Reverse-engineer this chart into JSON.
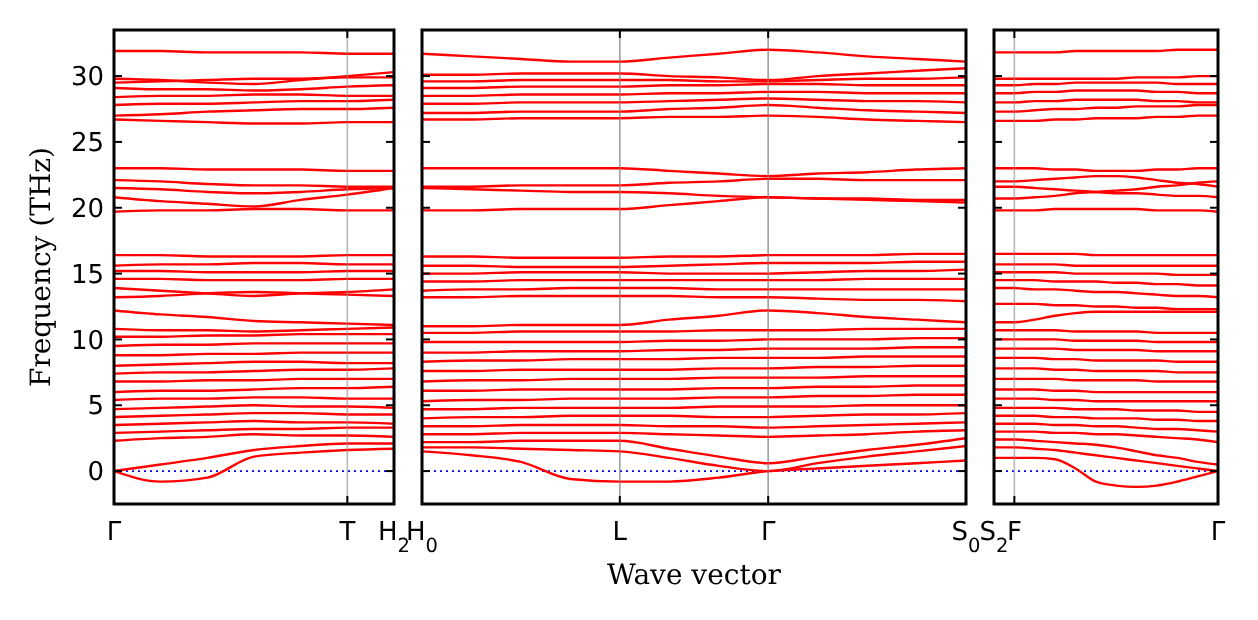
{
  "chart_data": [
    {
      "type": "line",
      "ylabel": "Frequency (THz)",
      "categories": [
        "Γ",
        null,
        null,
        null,
        null,
        "T",
        "H$_{2}$"
      ],
      "ylim": [
        -2.5,
        33.5
      ],
      "yticks": [
        0,
        5,
        10,
        15,
        20,
        25,
        30
      ],
      "ref_lines": [
        {
          "axis": "y",
          "value": 0,
          "color": "#0000ff",
          "line_style": "dotted"
        },
        {
          "axis": "x",
          "value": "T",
          "color": "#888888"
        }
      ],
      "series": [
        {
          "color": "#ff0000",
          "values": [
            0,
            -0.8,
            -0.5,
            1.1,
            1.4,
            1.6,
            1.7
          ]
        },
        {
          "color": "#ff0000",
          "values": [
            0,
            0.5,
            1,
            1.6,
            1.9,
            2.1,
            2.1
          ]
        },
        {
          "color": "#ff0000",
          "values": [
            2.3,
            2.5,
            2.6,
            2.8,
            2.7,
            2.7,
            2.6
          ]
        },
        {
          "color": "#ff0000",
          "values": [
            2.9,
            3,
            3.1,
            3.2,
            3.2,
            3.3,
            3.3
          ]
        },
        {
          "color": "#ff0000",
          "values": [
            3.5,
            3.6,
            3.7,
            3.8,
            3.7,
            3.7,
            3.6
          ]
        },
        {
          "color": "#ff0000",
          "values": [
            4.1,
            4.2,
            4.3,
            4.4,
            4.4,
            4.3,
            4.3
          ]
        },
        {
          "color": "#ff0000",
          "values": [
            4.7,
            4.8,
            4.9,
            5,
            4.9,
            4.9,
            4.8
          ]
        },
        {
          "color": "#ff0000",
          "values": [
            5.4,
            5.5,
            5.5,
            5.6,
            5.6,
            5.5,
            5.5
          ]
        },
        {
          "color": "#ff0000",
          "values": [
            6,
            6.1,
            6.1,
            6.2,
            6.3,
            6.3,
            6.4
          ]
        },
        {
          "color": "#ff0000",
          "values": [
            6.8,
            6.8,
            6.9,
            6.9,
            7,
            7,
            7
          ]
        },
        {
          "color": "#ff0000",
          "values": [
            7.4,
            7.5,
            7.5,
            7.6,
            7.7,
            7.7,
            7.8
          ]
        },
        {
          "color": "#ff0000",
          "values": [
            8,
            8.1,
            8.2,
            8.3,
            8.3,
            8.2,
            8.2
          ]
        },
        {
          "color": "#ff0000",
          "values": [
            8.8,
            8.8,
            8.9,
            8.9,
            9,
            9,
            9
          ]
        },
        {
          "color": "#ff0000",
          "values": [
            9.5,
            9.6,
            9.6,
            9.7,
            9.7,
            9.7,
            9.7
          ]
        },
        {
          "color": "#ff0000",
          "values": [
            10.2,
            10.2,
            10.3,
            10.3,
            10.4,
            10.4,
            10.4
          ]
        },
        {
          "color": "#ff0000",
          "values": [
            10.8,
            10.7,
            10.7,
            10.6,
            10.7,
            10.8,
            10.9
          ]
        },
        {
          "color": "#ff0000",
          "values": [
            12.2,
            11.9,
            11.7,
            11.4,
            11.3,
            11.2,
            11.1
          ]
        },
        {
          "color": "#ff0000",
          "values": [
            13.2,
            13.3,
            13.5,
            13.6,
            13.5,
            13.4,
            13.3
          ]
        },
        {
          "color": "#ff0000",
          "values": [
            13.9,
            13.7,
            13.5,
            13.3,
            13.5,
            13.6,
            13.8
          ]
        },
        {
          "color": "#ff0000",
          "values": [
            14.6,
            14.6,
            14.5,
            14.5,
            14.5,
            14.6,
            14.6
          ]
        },
        {
          "color": "#ff0000",
          "values": [
            15.2,
            15.2,
            15.1,
            15.1,
            15.1,
            15.2,
            15.2
          ]
        },
        {
          "color": "#ff0000",
          "values": [
            15.6,
            15.7,
            15.7,
            15.8,
            15.8,
            15.7,
            15.7
          ]
        },
        {
          "color": "#ff0000",
          "values": [
            16.4,
            16.4,
            16.3,
            16.3,
            16.3,
            16.4,
            16.4
          ]
        },
        {
          "color": "#ff0000",
          "values": [
            19.7,
            19.8,
            19.8,
            19.9,
            19.9,
            19.8,
            19.8
          ]
        },
        {
          "color": "#ff0000",
          "values": [
            20.8,
            20.5,
            20.3,
            20.1,
            20.6,
            21,
            21.5
          ]
        },
        {
          "color": "#ff0000",
          "values": [
            21.5,
            21.4,
            21.2,
            21.1,
            21.2,
            21.4,
            21.5
          ]
        },
        {
          "color": "#ff0000",
          "values": [
            22.1,
            22,
            21.8,
            21.7,
            21.7,
            21.6,
            21.6
          ]
        },
        {
          "color": "#ff0000",
          "values": [
            23,
            23,
            22.9,
            22.9,
            22.9,
            22.8,
            22.8
          ]
        },
        {
          "color": "#ff0000",
          "values": [
            26.7,
            26.6,
            26.5,
            26.4,
            26.4,
            26.5,
            26.5
          ]
        },
        {
          "color": "#ff0000",
          "values": [
            27,
            27.1,
            27.3,
            27.4,
            27.5,
            27.5,
            27.6
          ]
        },
        {
          "color": "#ff0000",
          "values": [
            27.8,
            27.9,
            27.9,
            28,
            28.1,
            28.1,
            28.2
          ]
        },
        {
          "color": "#ff0000",
          "values": [
            28.4,
            28.5,
            28.5,
            28.6,
            28.6,
            28.5,
            28.5
          ]
        },
        {
          "color": "#ff0000",
          "values": [
            29.1,
            29,
            29,
            28.9,
            29,
            29.2,
            29.3
          ]
        },
        {
          "color": "#ff0000",
          "values": [
            29.5,
            29.6,
            29.7,
            29.8,
            29.8,
            29.9,
            29.9
          ]
        },
        {
          "color": "#ff0000",
          "values": [
            29.8,
            29.7,
            29.5,
            29.4,
            29.7,
            30,
            30.3
          ]
        },
        {
          "color": "#ff0000",
          "values": [
            31.9,
            31.9,
            31.8,
            31.8,
            31.8,
            31.7,
            31.7
          ]
        }
      ]
    },
    {
      "type": "line",
      "xlabel": "Wave vector",
      "tick_labels": "x",
      "categories": [
        "H$_{0}$",
        null,
        null,
        null,
        "L",
        null,
        null,
        "Γ",
        null,
        null,
        null,
        "S$_{0}$"
      ],
      "ylim": [
        -2.5,
        33.5
      ],
      "yticks": [
        0,
        5,
        10,
        15,
        20,
        25,
        30
      ],
      "grid": "x",
      "ref_lines": [
        {
          "axis": "y",
          "value": 0,
          "color": "#0000ff",
          "line_style": "dotted"
        }
      ],
      "series": [
        {
          "color": "#ff0000",
          "values": [
            1.5,
            1.2,
            0.7,
            -0.6,
            -0.8,
            -0.8,
            -0.5,
            0,
            0.2,
            0.4,
            0.6,
            0.8
          ]
        },
        {
          "color": "#ff0000",
          "values": [
            1.8,
            1.8,
            1.7,
            1.6,
            1.5,
            1,
            0.4,
            0,
            0.6,
            1.1,
            1.5,
            1.9
          ]
        },
        {
          "color": "#ff0000",
          "values": [
            2.2,
            2.2,
            2.3,
            2.3,
            2.3,
            1.7,
            1.1,
            0.6,
            1.1,
            1.6,
            2,
            2.5
          ]
        },
        {
          "color": "#ff0000",
          "values": [
            2.8,
            2.8,
            2.9,
            2.9,
            2.9,
            2.8,
            2.7,
            2.6,
            2.7,
            2.8,
            3,
            3.1
          ]
        },
        {
          "color": "#ff0000",
          "values": [
            3.4,
            3.4,
            3.5,
            3.5,
            3.5,
            3.4,
            3.4,
            3.3,
            3.4,
            3.5,
            3.6,
            3.7
          ]
        },
        {
          "color": "#ff0000",
          "values": [
            4,
            4.1,
            4.1,
            4.2,
            4.2,
            4.2,
            4.1,
            4.1,
            4.2,
            4.3,
            4.3,
            4.4
          ]
        },
        {
          "color": "#ff0000",
          "values": [
            4.7,
            4.7,
            4.8,
            4.8,
            4.8,
            4.8,
            4.9,
            4.9,
            4.9,
            5,
            5,
            5
          ]
        },
        {
          "color": "#ff0000",
          "values": [
            5.3,
            5.4,
            5.4,
            5.5,
            5.5,
            5.5,
            5.6,
            5.6,
            5.7,
            5.7,
            5.8,
            5.8
          ]
        },
        {
          "color": "#ff0000",
          "values": [
            6.1,
            6.1,
            6.2,
            6.2,
            6.2,
            6.2,
            6.3,
            6.3,
            6.4,
            6.4,
            6.5,
            6.5
          ]
        },
        {
          "color": "#ff0000",
          "values": [
            6.8,
            6.9,
            6.9,
            7,
            7,
            7,
            7.1,
            7.1,
            7.1,
            7.2,
            7.2,
            7.2
          ]
        },
        {
          "color": "#ff0000",
          "values": [
            7.6,
            7.6,
            7.7,
            7.7,
            7.7,
            7.7,
            7.8,
            7.8,
            7.9,
            7.9,
            8,
            8
          ]
        },
        {
          "color": "#ff0000",
          "values": [
            8.3,
            8.4,
            8.4,
            8.5,
            8.5,
            8.5,
            8.6,
            8.6,
            8.6,
            8.7,
            8.7,
            8.7
          ]
        },
        {
          "color": "#ff0000",
          "values": [
            9,
            9,
            9.1,
            9.1,
            9.1,
            9.2,
            9.2,
            9.3,
            9.3,
            9.3,
            9.4,
            9.4
          ]
        },
        {
          "color": "#ff0000",
          "values": [
            9.8,
            9.8,
            9.8,
            9.8,
            9.8,
            9.9,
            9.9,
            10,
            10,
            10,
            10.1,
            10.1
          ]
        },
        {
          "color": "#ff0000",
          "values": [
            10.5,
            10.5,
            10.6,
            10.6,
            10.6,
            10.6,
            10.7,
            10.7,
            10.7,
            10.8,
            10.8,
            10.8
          ]
        },
        {
          "color": "#ff0000",
          "values": [
            11,
            11,
            11.1,
            11.1,
            11.1,
            11.5,
            11.8,
            12.2,
            12,
            11.7,
            11.5,
            11.3
          ]
        },
        {
          "color": "#ff0000",
          "values": [
            13.2,
            13.2,
            13.3,
            13.3,
            13.3,
            13.3,
            13.2,
            13.2,
            13.1,
            13,
            13,
            12.9
          ]
        },
        {
          "color": "#ff0000",
          "values": [
            13.7,
            13.8,
            13.8,
            13.9,
            13.9,
            13.9,
            13.8,
            13.8,
            13.8,
            13.8,
            13.8,
            13.8
          ]
        },
        {
          "color": "#ff0000",
          "values": [
            14.4,
            14.4,
            14.5,
            14.5,
            14.5,
            14.5,
            14.5,
            14.5,
            14.5,
            14.6,
            14.6,
            14.6
          ]
        },
        {
          "color": "#ff0000",
          "values": [
            15,
            15,
            15.1,
            15.1,
            15.1,
            15,
            15,
            15,
            15.1,
            15.2,
            15.2,
            15.3
          ]
        },
        {
          "color": "#ff0000",
          "values": [
            15.6,
            15.6,
            15.5,
            15.5,
            15.5,
            15.6,
            15.7,
            15.8,
            15.8,
            15.8,
            15.9,
            15.9
          ]
        },
        {
          "color": "#ff0000",
          "values": [
            16.3,
            16.3,
            16.2,
            16.2,
            16.2,
            16.3,
            16.3,
            16.4,
            16.4,
            16.4,
            16.5,
            16.5
          ]
        },
        {
          "color": "#ff0000",
          "values": [
            19.8,
            19.8,
            19.9,
            19.9,
            19.9,
            20.2,
            20.5,
            20.8,
            20.7,
            20.7,
            20.6,
            20.6
          ]
        },
        {
          "color": "#ff0000",
          "values": [
            21.5,
            21.4,
            21.3,
            21.2,
            21.2,
            21.1,
            20.9,
            20.8,
            20.7,
            20.6,
            20.5,
            20.4
          ]
        },
        {
          "color": "#ff0000",
          "values": [
            21.6,
            21.6,
            21.7,
            21.7,
            21.7,
            21.9,
            22,
            22.2,
            22.2,
            22.1,
            22.1,
            22.1
          ]
        },
        {
          "color": "#ff0000",
          "values": [
            23,
            23,
            23,
            23,
            23,
            22.8,
            22.6,
            22.4,
            22.6,
            22.7,
            22.9,
            23
          ]
        },
        {
          "color": "#ff0000",
          "values": [
            26.7,
            26.7,
            26.8,
            26.8,
            26.8,
            26.9,
            26.9,
            27,
            26.9,
            26.7,
            26.6,
            26.5
          ]
        },
        {
          "color": "#ff0000",
          "values": [
            27.2,
            27.2,
            27.3,
            27.3,
            27.3,
            27.5,
            27.6,
            27.8,
            27.6,
            27.4,
            27.3,
            27.2
          ]
        },
        {
          "color": "#ff0000",
          "values": [
            27.9,
            27.9,
            28,
            28,
            28,
            28.1,
            28.2,
            28.3,
            28.2,
            28.1,
            28.1,
            28
          ]
        },
        {
          "color": "#ff0000",
          "values": [
            28.5,
            28.5,
            28.6,
            28.6,
            28.6,
            28.7,
            28.7,
            28.8,
            28.8,
            28.7,
            28.7,
            28.7
          ]
        },
        {
          "color": "#ff0000",
          "values": [
            29.1,
            29.1,
            29.2,
            29.2,
            29.2,
            29.3,
            29.3,
            29.4,
            29.4,
            29.3,
            29.3,
            29.3
          ]
        },
        {
          "color": "#ff0000",
          "values": [
            29.6,
            29.6,
            29.7,
            29.7,
            29.7,
            29.7,
            29.6,
            29.6,
            29.7,
            29.8,
            29.8,
            29.9
          ]
        },
        {
          "color": "#ff0000",
          "values": [
            30.1,
            30.1,
            30.2,
            30.2,
            30.2,
            30,
            29.9,
            29.7,
            30,
            30.2,
            30.4,
            30.6
          ]
        },
        {
          "color": "#ff0000",
          "values": [
            31.7,
            31.5,
            31.3,
            31.1,
            31.1,
            31.4,
            31.7,
            32,
            31.8,
            31.5,
            31.3,
            31.1
          ]
        }
      ]
    },
    {
      "type": "line",
      "tick_labels": "x",
      "categories": [
        "S$_{2}$",
        "F",
        null,
        null,
        null,
        null,
        null,
        null,
        null,
        null,
        null,
        "Γ"
      ],
      "ylim": [
        -2.5,
        33.5
      ],
      "yticks": [
        0,
        5,
        10,
        15,
        20,
        25,
        30
      ],
      "ref_lines": [
        {
          "axis": "y",
          "value": 0,
          "color": "#0000ff",
          "line_style": "dotted"
        },
        {
          "axis": "x",
          "value": "F",
          "color": "#888888"
        }
      ],
      "series": [
        {
          "color": "#ff0000",
          "values": [
            1,
            1,
            1,
            0.9,
            0.2,
            -0.8,
            -1.1,
            -1.2,
            -1.1,
            -0.8,
            -0.4,
            0
          ]
        },
        {
          "color": "#ff0000",
          "values": [
            1.8,
            1.8,
            1.7,
            1.6,
            1.4,
            1.2,
            1,
            0.8,
            0.6,
            0.4,
            0.2,
            0
          ]
        },
        {
          "color": "#ff0000",
          "values": [
            2.4,
            2.4,
            2.3,
            2.2,
            2.1,
            2,
            1.8,
            1.5,
            1.2,
            1,
            0.7,
            0.5
          ]
        },
        {
          "color": "#ff0000",
          "values": [
            3,
            3,
            3,
            2.9,
            2.9,
            2.8,
            2.8,
            2.7,
            2.6,
            2.5,
            2.4,
            2.2
          ]
        },
        {
          "color": "#ff0000",
          "values": [
            3.6,
            3.6,
            3.6,
            3.5,
            3.5,
            3.4,
            3.4,
            3.3,
            3.2,
            3.2,
            3.1,
            3
          ]
        },
        {
          "color": "#ff0000",
          "values": [
            4.2,
            4.2,
            4.2,
            4.1,
            4.1,
            4,
            4,
            4,
            3.9,
            3.9,
            3.8,
            3.8
          ]
        },
        {
          "color": "#ff0000",
          "values": [
            4.8,
            4.8,
            4.8,
            4.8,
            4.7,
            4.7,
            4.7,
            4.6,
            4.6,
            4.6,
            4.5,
            4.5
          ]
        },
        {
          "color": "#ff0000",
          "values": [
            5.5,
            5.5,
            5.5,
            5.4,
            5.4,
            5.3,
            5.3,
            5.3,
            5.3,
            5.3,
            5.3,
            5.3
          ]
        },
        {
          "color": "#ff0000",
          "values": [
            6.2,
            6.2,
            6.2,
            6.1,
            6.1,
            6,
            6,
            6,
            6,
            6,
            6,
            6
          ]
        },
        {
          "color": "#ff0000",
          "values": [
            7,
            7,
            7,
            7,
            6.9,
            6.9,
            6.9,
            6.9,
            6.8,
            6.8,
            6.8,
            6.8
          ]
        },
        {
          "color": "#ff0000",
          "values": [
            7.8,
            7.8,
            7.8,
            7.7,
            7.7,
            7.6,
            7.6,
            7.6,
            7.6,
            7.5,
            7.5,
            7.5
          ]
        },
        {
          "color": "#ff0000",
          "values": [
            8.6,
            8.6,
            8.6,
            8.5,
            8.5,
            8.4,
            8.4,
            8.4,
            8.4,
            8.3,
            8.3,
            8.3
          ]
        },
        {
          "color": "#ff0000",
          "values": [
            9.3,
            9.3,
            9.3,
            9.3,
            9.2,
            9.2,
            9.2,
            9.2,
            9.1,
            9.1,
            9.1,
            9.1
          ]
        },
        {
          "color": "#ff0000",
          "values": [
            10,
            10,
            10,
            10,
            9.9,
            9.9,
            9.9,
            9.9,
            9.8,
            9.8,
            9.8,
            9.8
          ]
        },
        {
          "color": "#ff0000",
          "values": [
            10.7,
            10.7,
            10.7,
            10.7,
            10.6,
            10.6,
            10.6,
            10.6,
            10.5,
            10.5,
            10.5,
            10.5
          ]
        },
        {
          "color": "#ff0000",
          "values": [
            11.3,
            11.3,
            11.5,
            11.8,
            12,
            12.1,
            12.1,
            12.1,
            12.1,
            12.1,
            12.1,
            12.1
          ]
        },
        {
          "color": "#ff0000",
          "values": [
            12.7,
            12.7,
            12.7,
            12.6,
            12.6,
            12.5,
            12.5,
            12.4,
            12.4,
            12.3,
            12.3,
            12.3
          ]
        },
        {
          "color": "#ff0000",
          "values": [
            13.9,
            13.9,
            13.8,
            13.8,
            13.7,
            13.6,
            13.6,
            13.5,
            13.4,
            13.3,
            13.3,
            13.2
          ]
        },
        {
          "color": "#ff0000",
          "values": [
            14.5,
            14.5,
            14.5,
            14.4,
            14.4,
            14.4,
            14.3,
            14.3,
            14.2,
            14.2,
            14.1,
            14.1
          ]
        },
        {
          "color": "#ff0000",
          "values": [
            15.1,
            15.1,
            15.1,
            15.1,
            15,
            15,
            15,
            15,
            15,
            14.9,
            14.9,
            14.9
          ]
        },
        {
          "color": "#ff0000",
          "values": [
            15.7,
            15.7,
            15.7,
            15.7,
            15.6,
            15.6,
            15.6,
            15.6,
            15.6,
            15.6,
            15.6,
            15.6
          ]
        },
        {
          "color": "#ff0000",
          "values": [
            16.5,
            16.5,
            16.5,
            16.5,
            16.5,
            16.4,
            16.4,
            16.4,
            16.4,
            16.4,
            16.4,
            16.4
          ]
        },
        {
          "color": "#ff0000",
          "values": [
            19.8,
            19.8,
            19.8,
            19.9,
            19.9,
            19.9,
            19.9,
            19.9,
            19.8,
            19.8,
            19.8,
            19.7
          ]
        },
        {
          "color": "#ff0000",
          "values": [
            20.7,
            20.7,
            20.8,
            20.9,
            21.1,
            21.2,
            21.3,
            21.4,
            21.6,
            21.7,
            21.9,
            22
          ]
        },
        {
          "color": "#ff0000",
          "values": [
            21.6,
            21.6,
            21.5,
            21.4,
            21.3,
            21.2,
            21.1,
            21.1,
            21,
            20.9,
            20.9,
            20.8
          ]
        },
        {
          "color": "#ff0000",
          "values": [
            22,
            22,
            22.1,
            22.2,
            22.3,
            22.4,
            22.4,
            22.3,
            22.1,
            21.9,
            21.8,
            21.6
          ]
        },
        {
          "color": "#ff0000",
          "values": [
            23,
            23,
            23,
            22.9,
            22.9,
            22.8,
            22.8,
            22.8,
            22.9,
            22.9,
            23,
            23
          ]
        },
        {
          "color": "#ff0000",
          "values": [
            26.6,
            26.6,
            26.6,
            26.7,
            26.7,
            26.8,
            26.8,
            26.8,
            26.9,
            26.9,
            27,
            27
          ]
        },
        {
          "color": "#ff0000",
          "values": [
            27.3,
            27.3,
            27.4,
            27.5,
            27.5,
            27.6,
            27.6,
            27.7,
            27.7,
            27.7,
            27.8,
            27.8
          ]
        },
        {
          "color": "#ff0000",
          "values": [
            28,
            28,
            28.1,
            28.1,
            28.2,
            28.2,
            28.2,
            28.2,
            28.1,
            28.1,
            28,
            28
          ]
        },
        {
          "color": "#ff0000",
          "values": [
            28.7,
            28.7,
            28.8,
            28.8,
            28.9,
            28.9,
            28.9,
            28.9,
            28.8,
            28.8,
            28.7,
            28.7
          ]
        },
        {
          "color": "#ff0000",
          "values": [
            29.3,
            29.3,
            29.4,
            29.4,
            29.5,
            29.5,
            29.5,
            29.5,
            29.5,
            29.4,
            29.4,
            29.4
          ]
        },
        {
          "color": "#ff0000",
          "values": [
            29.8,
            29.8,
            29.8,
            29.8,
            29.8,
            29.8,
            29.8,
            29.9,
            29.9,
            29.9,
            30,
            30
          ]
        },
        {
          "color": "#ff0000",
          "values": [
            31.8,
            31.8,
            31.8,
            31.8,
            31.9,
            31.9,
            31.9,
            31.9,
            31.9,
            32,
            32,
            32
          ]
        }
      ]
    }
  ]
}
